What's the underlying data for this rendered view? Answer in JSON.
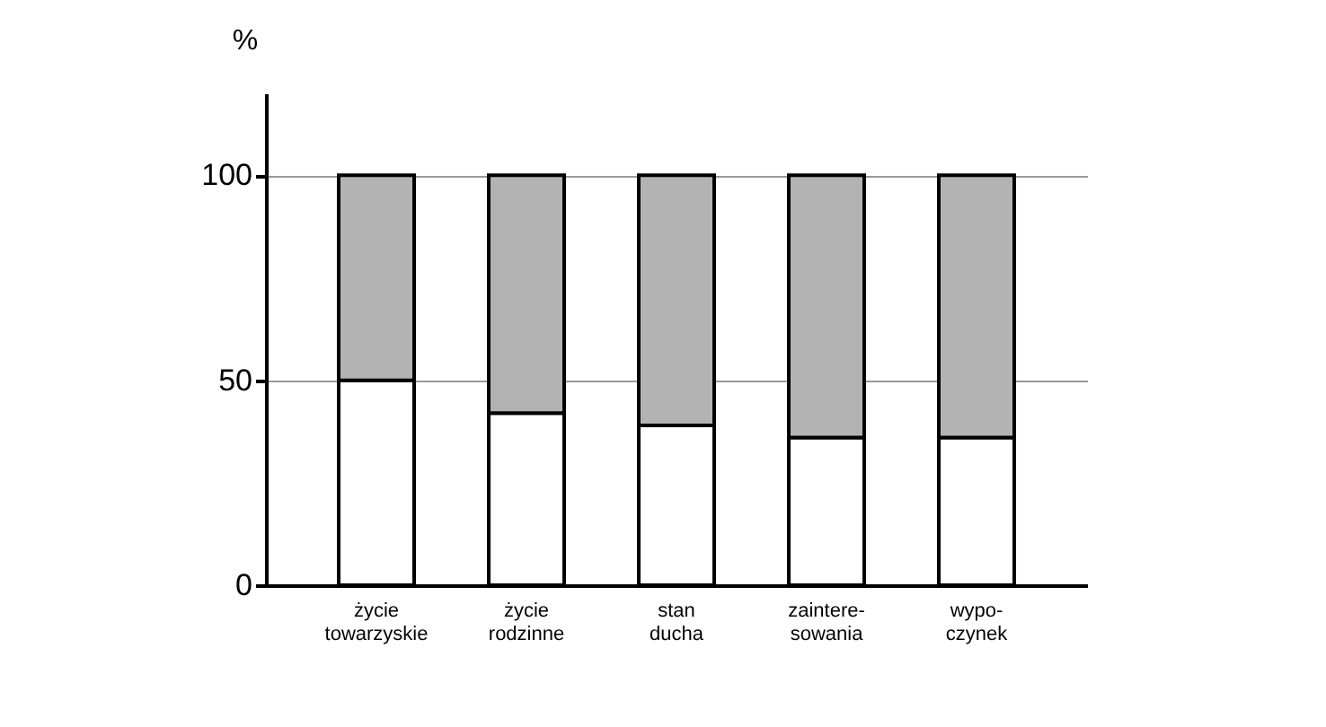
{
  "chart_data": {
    "type": "bar",
    "stacked": true,
    "ylabel": "%",
    "categories": [
      "życie\ntowarzyskie",
      "życie\nrodzinne",
      "stan\nducha",
      "zaintere-\nsowania",
      "wypo-\nczynek"
    ],
    "series": [
      {
        "color": "#ffffff",
        "values": [
          50,
          42,
          39,
          36,
          36
        ]
      },
      {
        "color": "#b3b3b3",
        "values": [
          50,
          58,
          61,
          64,
          64
        ]
      }
    ],
    "ylim": [
      0,
      120
    ],
    "yticks": [
      0,
      50,
      100
    ],
    "grid": "y"
  }
}
